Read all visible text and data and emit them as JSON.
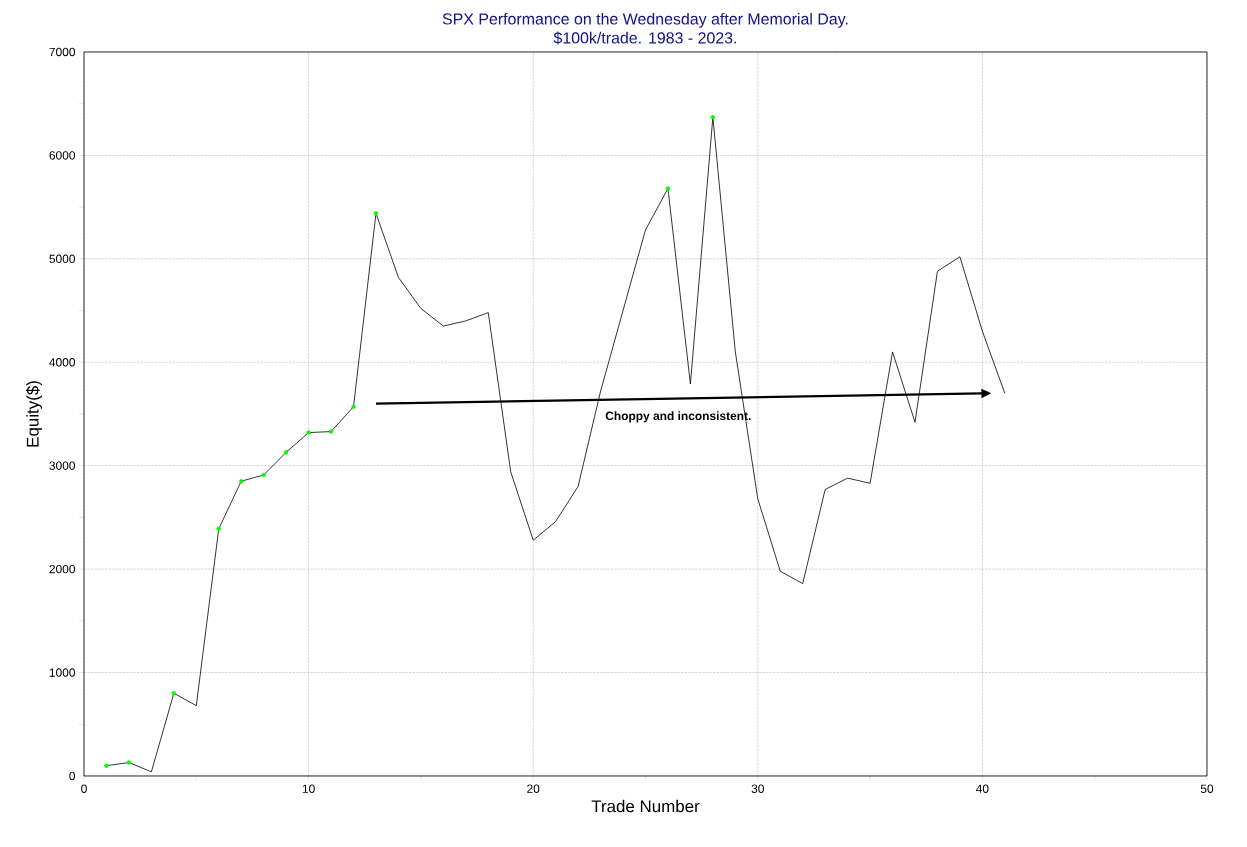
{
  "chart_data": {
    "type": "line",
    "title": "SPX Performance on the Wednesday after Memorial Day.",
    "subtitle": "$100k/trade. 1983 - 2023.",
    "xlabel": "Trade Number",
    "ylabel": "Equity($)",
    "annotations": [
      "Choppy and inconsistent."
    ],
    "x": [
      1,
      2,
      3,
      4,
      5,
      6,
      7,
      8,
      9,
      10,
      11,
      12,
      13,
      14,
      15,
      16,
      17,
      18,
      19,
      20,
      21,
      22,
      23,
      24,
      25,
      26,
      27,
      28,
      29,
      30,
      31,
      32,
      33,
      34,
      35,
      36,
      37,
      38,
      39,
      40,
      41
    ],
    "series": [
      {
        "color": "#000000",
        "values": [
          100,
          130,
          40,
          800,
          680,
          2390,
          2850,
          2910,
          3130,
          3320,
          3330,
          3570,
          5440,
          4820,
          4520,
          4350,
          4400,
          4480,
          2940,
          2280,
          2460,
          2800,
          3720,
          4500,
          5280,
          5680,
          3790,
          6370,
          4100,
          2680,
          1980,
          1860,
          2770,
          2880,
          2830,
          4100,
          3420,
          4880,
          5020,
          4300,
          3700
        ]
      },
      {
        "type": "scatter",
        "color": "#00ff00",
        "x": [
          1,
          2,
          4,
          6,
          7,
          8,
          9,
          10,
          11,
          12,
          13,
          26,
          28
        ],
        "values": [
          100,
          130,
          800,
          2390,
          2850,
          2910,
          3130,
          3320,
          3330,
          3570,
          5440,
          5680,
          6370
        ]
      }
    ],
    "xlim": [
      0,
      50
    ],
    "ylim": [
      0,
      7000
    ],
    "xticks": [
      0,
      {
        "value": 5,
        "label": null
      },
      10,
      {
        "value": 15,
        "label": null
      },
      20,
      {
        "value": 25,
        "label": null
      },
      30,
      {
        "value": 35,
        "label": null
      },
      40,
      {
        "value": 45,
        "label": null
      },
      50
    ],
    "yticks": [
      0,
      {
        "value": 500,
        "label": null
      },
      1000,
      {
        "value": 1500,
        "label": null
      },
      2000,
      {
        "value": 2500,
        "label": null
      },
      3000,
      {
        "value": 3500,
        "label": null
      },
      4000,
      {
        "value": 4500,
        "label": null
      },
      5000,
      {
        "value": 5500,
        "label": null
      },
      6000,
      {
        "value": 6500,
        "label": null
      },
      7000
    ],
    "grid": true,
    "marker": "none",
    "line_style": "solid"
  }
}
